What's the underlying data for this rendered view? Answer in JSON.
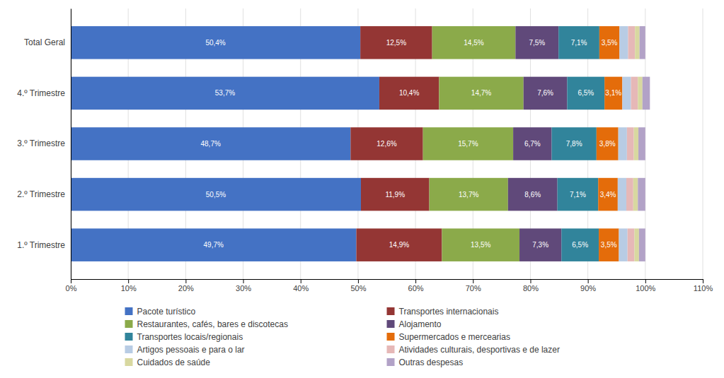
{
  "chart_data": {
    "type": "bar",
    "orientation": "horizontal",
    "stacked": true,
    "categories": [
      "1.º Trimestre",
      "2.º Trimestre",
      "3.º Trimestre",
      "4.º Trimestre",
      "Total Geral"
    ],
    "series": [
      {
        "name": "Pacote turístico",
        "color": "#4472C4",
        "values": [
          49.7,
          50.5,
          48.7,
          53.7,
          50.4
        ],
        "value_labels": [
          "49,7%",
          "50,5%",
          "48,7%",
          "53,7%",
          "50,4%"
        ]
      },
      {
        "name": "Transportes internacionais",
        "color": "#943634",
        "values": [
          14.9,
          11.9,
          12.6,
          10.4,
          12.5
        ],
        "value_labels": [
          "14,9%",
          "11,9%",
          "12,6%",
          "10,4%",
          "12,5%"
        ]
      },
      {
        "name": "Restaurantes, cafés, bares e discotecas",
        "color": "#8BAA4A",
        "values": [
          13.5,
          13.7,
          15.7,
          14.7,
          14.5
        ],
        "value_labels": [
          "13,5%",
          "13,7%",
          "15,7%",
          "14,7%",
          "14,5%"
        ]
      },
      {
        "name": "Alojamento",
        "color": "#60497A",
        "values": [
          7.3,
          8.6,
          6.7,
          7.6,
          7.5
        ],
        "value_labels": [
          "7,3%",
          "8,6%",
          "6,7%",
          "7,6%",
          "7,5%"
        ]
      },
      {
        "name": "Transportes locais/regionais",
        "color": "#31849B",
        "values": [
          6.5,
          7.1,
          7.8,
          6.5,
          7.1
        ],
        "value_labels": [
          "6,5%",
          "7,1%",
          "7,8%",
          "6,5%",
          "7,1%"
        ]
      },
      {
        "name": "Supermercados e mercearias",
        "color": "#E46C0A",
        "values": [
          3.5,
          3.4,
          3.8,
          3.1,
          3.5
        ],
        "value_labels": [
          "3,5%",
          "3,4%",
          "3,8%",
          "3,1%",
          "3,5%"
        ]
      },
      {
        "name": "Artigos pessoais e para o lar",
        "color": "#B8CCE4",
        "values": [
          1.5,
          1.5,
          1.5,
          1.5,
          1.5
        ]
      },
      {
        "name": "Atividades culturais, desportivas e de lazer",
        "color": "#E6B8B7",
        "values": [
          1.2,
          1.2,
          1.2,
          1.2,
          1.2
        ]
      },
      {
        "name": "Cuidados de saúde",
        "color": "#D8D8A0",
        "values": [
          0.8,
          0.8,
          0.8,
          0.8,
          0.8
        ]
      },
      {
        "name": "Outras despesas",
        "color": "#B2A2C7",
        "values": [
          1.1,
          1.3,
          1.2,
          1.3,
          1.0
        ]
      }
    ],
    "xlim": [
      0,
      110
    ],
    "xticks": [
      {
        "value": 0,
        "label": "0%"
      },
      {
        "value": 10,
        "label": "10%"
      },
      {
        "value": 20,
        "label": "20%"
      },
      {
        "value": 30,
        "label": "30%"
      },
      {
        "value": 40,
        "label": "40%"
      },
      {
        "value": 50,
        "label": "50%"
      },
      {
        "value": 60,
        "label": "60%"
      },
      {
        "value": 70,
        "label": "70%"
      },
      {
        "value": 80,
        "label": "80%"
      },
      {
        "value": 90,
        "label": "90%"
      },
      {
        "value": 100,
        "label": "100%"
      },
      {
        "value": 110,
        "label": "110%"
      }
    ],
    "grid": true,
    "legend": "bottom",
    "data_labels": true
  }
}
